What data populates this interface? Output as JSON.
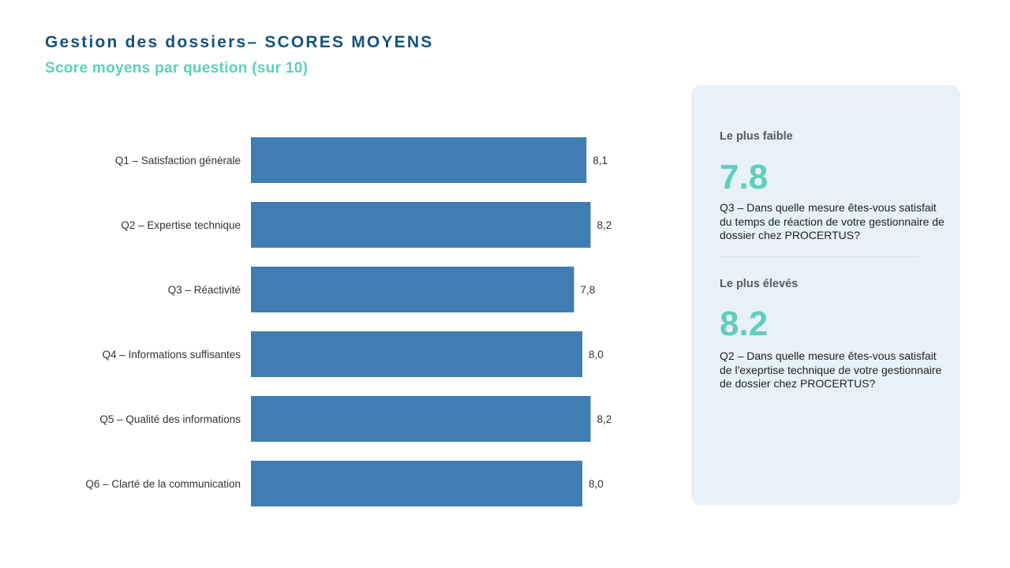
{
  "header": {
    "title": "Gestion des dossiers– SCORES MOYENS",
    "subtitle": "Score moyens par question (sur 10)"
  },
  "colors": {
    "title": "#15527f",
    "accent": "#5fcfbd",
    "bar": "#3f7db2",
    "panel_bg": "#e8f0f8"
  },
  "chart_data": {
    "type": "bar",
    "orientation": "horizontal",
    "categories": [
      "Q1 – Satisfaction générale",
      "Q2 – Expertise technique",
      "Q3 – Réactivité",
      "Q4 – Informations suffisantes",
      "Q5 – Qualité des informations",
      "Q6 – Clarté de la communication"
    ],
    "values": [
      8.1,
      8.2,
      7.8,
      8.0,
      8.2,
      8.0
    ],
    "value_labels": [
      "8,1",
      "8,2",
      "7,8",
      "8,0",
      "8,2",
      "8,0"
    ],
    "xlim": [
      0,
      10
    ],
    "grid": false,
    "legend": "none"
  },
  "panel": {
    "lowest": {
      "heading": "Le plus faible",
      "value": "7.8",
      "description": "Q3 – Dans quelle mesure êtes-vous satisfait du temps de réaction de votre gestionnaire de dossier chez PROCERTUS?"
    },
    "highest": {
      "heading": "Le plus élevés",
      "value": "8.2",
      "description": "Q2 – Dans quelle mesure êtes-vous satisfait de l'exeprtise technique de votre gestionnaire de dossier chez PROCERTUS?"
    }
  }
}
